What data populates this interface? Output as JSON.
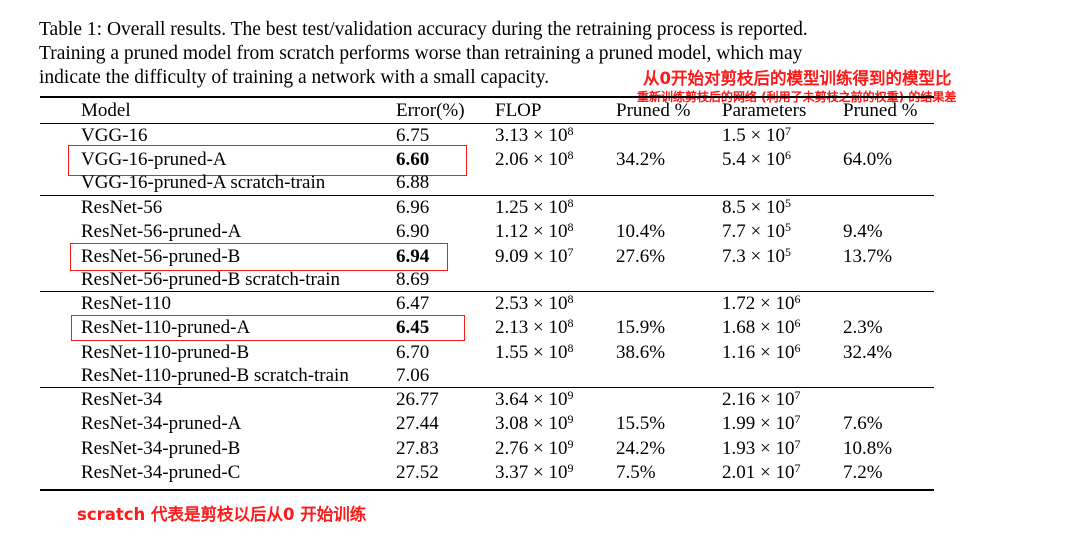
{
  "caption": {
    "line1": "Table 1: Overall results. The best test/validation accuracy during the retraining process is reported.",
    "line2": "Training a pruned model from scratch performs worse than retraining a pruned model, which may",
    "line3": "indicate the difficulty of training a network with a small capacity."
  },
  "annotations": {
    "top": "从0开始对剪枝后的模型训练得到的模型比",
    "sub": "重新训练剪枝后的网络 (利用了未剪枝之前的权重) 的结果差",
    "bottom": "scratch 代表是剪枝以后从0 开始训练",
    "color": "#ff1a1a"
  },
  "table": {
    "headers": [
      "Model",
      "Error(%)",
      "FLOP",
      "Pruned %",
      "Parameters",
      "Pruned %"
    ],
    "rows": [
      {
        "model": "VGG-16",
        "error": "6.75",
        "flop_m": "3.13 × 10",
        "flop_e": "8",
        "pf": "",
        "par_m": "1.5 × 10",
        "par_e": "7",
        "pp": ""
      },
      {
        "model": "VGG-16-pruned-A",
        "error": "6.60",
        "flop_m": "2.06 × 10",
        "flop_e": "8",
        "pf": "34.2%",
        "par_m": "5.4 × 10",
        "par_e": "6",
        "pp": "64.0%",
        "bold": true,
        "boxed": true
      },
      {
        "model": "VGG-16-pruned-A scratch-train",
        "error": "6.88",
        "flop_m": "",
        "flop_e": "",
        "pf": "",
        "par_m": "",
        "par_e": "",
        "pp": ""
      },
      {
        "model": "ResNet-56",
        "error": "6.96",
        "flop_m": "1.25 × 10",
        "flop_e": "8",
        "pf": "",
        "par_m": "8.5 × 10",
        "par_e": "5",
        "pp": ""
      },
      {
        "model": "ResNet-56-pruned-A",
        "error": "6.90",
        "flop_m": "1.12 × 10",
        "flop_e": "8",
        "pf": "10.4%",
        "par_m": "7.7 × 10",
        "par_e": "5",
        "pp": "9.4%"
      },
      {
        "model": "ResNet-56-pruned-B",
        "error": "6.94",
        "flop_m": "9.09 × 10",
        "flop_e": "7",
        "pf": "27.6%",
        "par_m": "7.3 × 10",
        "par_e": "5",
        "pp": "13.7%",
        "bold": true,
        "boxed": true
      },
      {
        "model": "ResNet-56-pruned-B scratch-train",
        "error": "8.69",
        "flop_m": "",
        "flop_e": "",
        "pf": "",
        "par_m": "",
        "par_e": "",
        "pp": ""
      },
      {
        "model": "ResNet-110",
        "error": "6.47",
        "flop_m": "2.53 × 10",
        "flop_e": "8",
        "pf": "",
        "par_m": "1.72 × 10",
        "par_e": "6",
        "pp": ""
      },
      {
        "model": "ResNet-110-pruned-A",
        "error": "6.45",
        "flop_m": "2.13 × 10",
        "flop_e": "8",
        "pf": "15.9%",
        "par_m": "1.68 × 10",
        "par_e": "6",
        "pp": "2.3%",
        "bold": true,
        "boxed": true
      },
      {
        "model": "ResNet-110-pruned-B",
        "error": "6.70",
        "flop_m": "1.55 × 10",
        "flop_e": "8",
        "pf": "38.6%",
        "par_m": "1.16 × 10",
        "par_e": "6",
        "pp": "32.4%"
      },
      {
        "model": "ResNet-110-pruned-B scratch-train",
        "error": "7.06",
        "flop_m": "",
        "flop_e": "",
        "pf": "",
        "par_m": "",
        "par_e": "",
        "pp": ""
      },
      {
        "model": "ResNet-34",
        "error": "26.77",
        "flop_m": "3.64 × 10",
        "flop_e": "9",
        "pf": "",
        "par_m": "2.16 × 10",
        "par_e": "7",
        "pp": ""
      },
      {
        "model": "ResNet-34-pruned-A",
        "error": "27.44",
        "flop_m": "3.08 × 10",
        "flop_e": "9",
        "pf": "15.5%",
        "par_m": "1.99 × 10",
        "par_e": "7",
        "pp": "7.6%"
      },
      {
        "model": "ResNet-34-pruned-B",
        "error": "27.83",
        "flop_m": "2.76 × 10",
        "flop_e": "9",
        "pf": "24.2%",
        "par_m": "1.93 × 10",
        "par_e": "7",
        "pp": "10.8%"
      },
      {
        "model": "ResNet-34-pruned-C",
        "error": "27.52",
        "flop_m": "3.37 × 10",
        "flop_e": "9",
        "pf": "7.5%",
        "par_m": "2.01 × 10",
        "par_e": "7",
        "pp": "7.2%"
      }
    ]
  }
}
